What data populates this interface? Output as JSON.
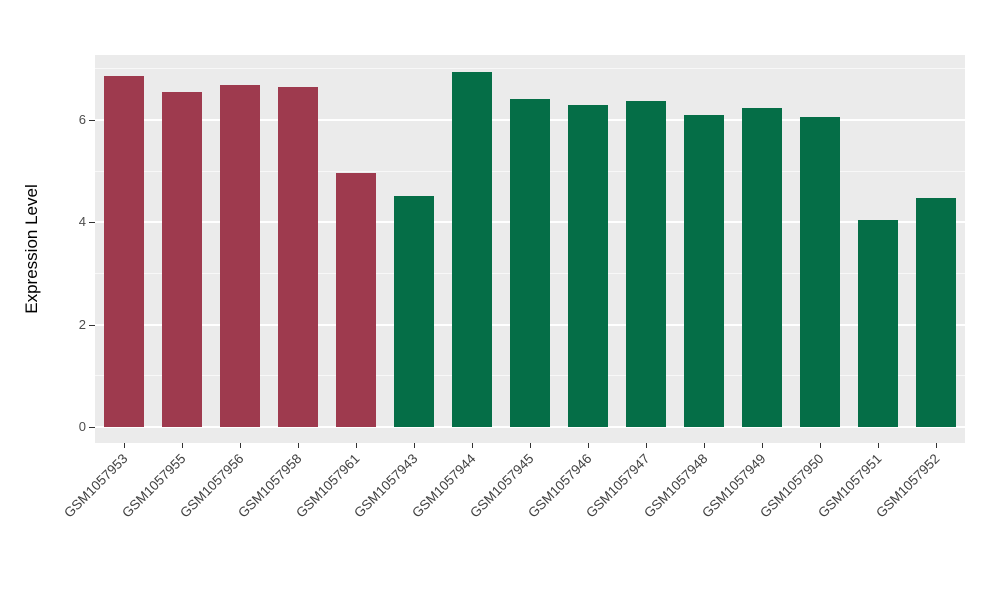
{
  "chart_data": {
    "type": "bar",
    "title": "",
    "xlabel": "",
    "ylabel": "Expression Level",
    "categories": [
      "GSM1057953",
      "GSM1057955",
      "GSM1057956",
      "GSM1057958",
      "GSM1057961",
      "GSM1057943",
      "GSM1057944",
      "GSM1057945",
      "GSM1057946",
      "GSM1057947",
      "GSM1057948",
      "GSM1057949",
      "GSM1057950",
      "GSM1057951",
      "GSM1057952"
    ],
    "values": [
      6.86,
      6.55,
      6.68,
      6.64,
      4.96,
      4.51,
      6.94,
      6.41,
      6.29,
      6.37,
      6.1,
      6.23,
      6.06,
      4.05,
      4.48
    ],
    "bar_colors": [
      "#9E3A4E",
      "#9E3A4E",
      "#9E3A4E",
      "#9E3A4E",
      "#9E3A4E",
      "#056E47",
      "#056E47",
      "#056E47",
      "#056E47",
      "#056E47",
      "#056E47",
      "#056E47",
      "#056E47",
      "#056E47",
      "#056E47"
    ],
    "group_colors": {
      "left_group": "#9E3A4E",
      "right_group": "#056E47"
    },
    "ylim": [
      0,
      7.3
    ],
    "yticks": [
      0,
      2,
      4,
      6
    ],
    "ytick_labels": [
      "0",
      "2",
      "4",
      "6"
    ],
    "grid": true,
    "plot_bg": "#EBEBEB",
    "grid_color": "#FFFFFF",
    "legend_position": "none"
  }
}
